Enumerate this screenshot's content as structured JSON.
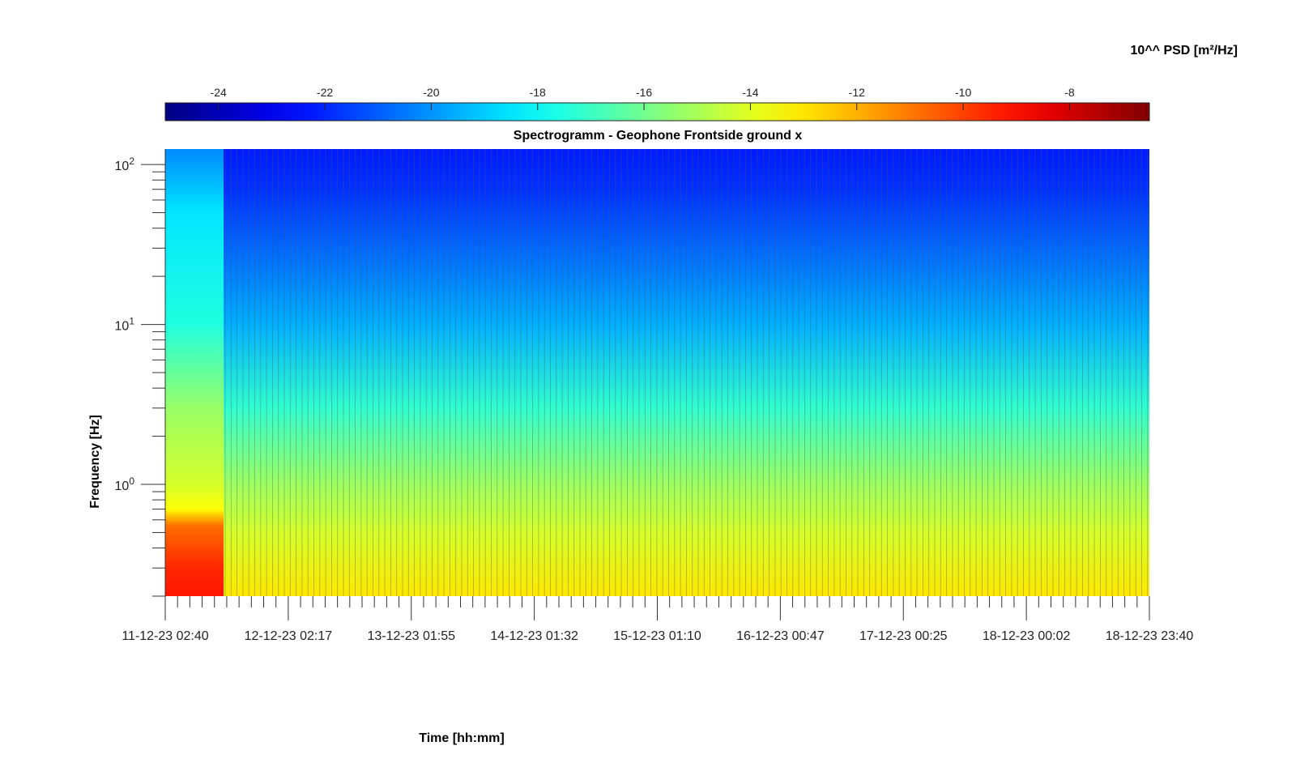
{
  "chart_data": {
    "type": "heatmap",
    "title": "Spectrogramm - Geophone Frontside ground x",
    "xlabel": "Time [hh:mm]",
    "ylabel": "Frequency [Hz]",
    "colorbar": {
      "label": "10^^ PSD [m²/Hz]",
      "range": [
        -25,
        -6.5
      ],
      "ticks": [
        -24,
        -22,
        -20,
        -18,
        -16,
        -14,
        -12,
        -10,
        -8
      ],
      "colormap": "jet",
      "location": "top"
    },
    "x_axis": {
      "ticks": [
        "11-12-23 02:40",
        "12-12-23 02:17",
        "13-12-23 01:55",
        "14-12-23 01:32",
        "15-12-23 01:10",
        "16-12-23 00:47",
        "17-12-23 00:25",
        "18-12-23 00:02",
        "18-12-23 23:40"
      ]
    },
    "y_axis": {
      "scale": "log",
      "range": [
        0.2,
        125
      ],
      "ticks": [
        {
          "value": 1,
          "base": "10",
          "exp": "0"
        },
        {
          "value": 10,
          "base": "10",
          "exp": "1"
        },
        {
          "value": 100,
          "base": "10",
          "exp": "2"
        }
      ]
    },
    "psd_profile_first_segment": [
      {
        "freq": 0.2,
        "log_psd": -9.2
      },
      {
        "freq": 0.3,
        "log_psd": -9.5
      },
      {
        "freq": 0.55,
        "log_psd": -10.8
      },
      {
        "freq": 0.7,
        "log_psd": -13.5
      },
      {
        "freq": 1,
        "log_psd": -14.2
      },
      {
        "freq": 3,
        "log_psd": -15.3
      },
      {
        "freq": 10,
        "log_psd": -17.5
      },
      {
        "freq": 50,
        "log_psd": -18.5
      },
      {
        "freq": 125,
        "log_psd": -20.2
      }
    ],
    "psd_profile_main": [
      {
        "freq": 0.2,
        "log_psd": -13.0
      },
      {
        "freq": 0.5,
        "log_psd": -14.2
      },
      {
        "freq": 1,
        "log_psd": -15.2
      },
      {
        "freq": 3,
        "log_psd": -17.2
      },
      {
        "freq": 10,
        "log_psd": -19.5
      },
      {
        "freq": 30,
        "log_psd": -20.8
      },
      {
        "freq": 70,
        "log_psd": -21.8
      },
      {
        "freq": 125,
        "log_psd": -22.2
      }
    ],
    "gaps": "periodic vertical gaps (no data) across the main recording period",
    "grid": false
  }
}
